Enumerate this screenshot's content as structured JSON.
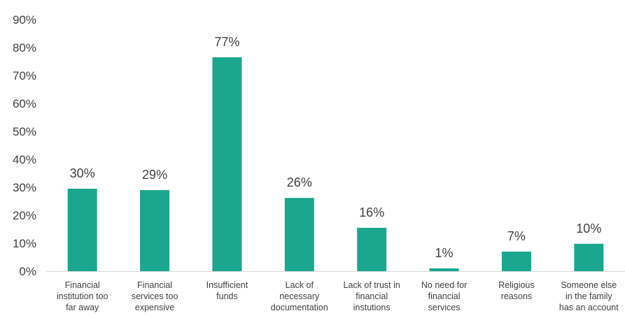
{
  "chart_data": {
    "type": "bar",
    "title": "",
    "xlabel": "",
    "ylabel": "",
    "ylim": [
      0,
      90
    ],
    "yticks": [
      "0%",
      "10%",
      "20%",
      "30%",
      "40%",
      "50%",
      "60%",
      "70%",
      "80%",
      "90%"
    ],
    "grid": false,
    "legend": "none",
    "bar_color": "#1aa68f",
    "categories": [
      [
        "Financial",
        "institution too",
        "far away"
      ],
      [
        "Financial",
        "services too",
        "expensive"
      ],
      [
        "Insufficient",
        "funds"
      ],
      [
        "Lack of",
        "necessary",
        "documentation"
      ],
      [
        "Lack of trust in",
        "financial",
        "instutions"
      ],
      [
        "No need for",
        "financial",
        "services"
      ],
      [
        "Religious",
        "reasons"
      ],
      [
        "Someone else",
        "in the family",
        "has an account"
      ]
    ],
    "values": [
      29.5,
      29,
      76.5,
      26.2,
      15.5,
      1,
      7,
      9.8
    ],
    "data_labels": [
      "30%",
      "29%",
      "77%",
      "26%",
      "16%",
      "1%",
      "7%",
      "10%"
    ]
  }
}
